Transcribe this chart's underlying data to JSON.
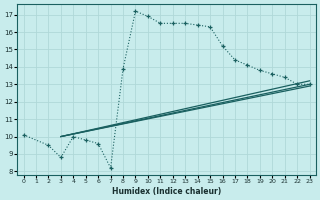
{
  "xlabel": "Humidex (Indice chaleur)",
  "background_color": "#c8ecec",
  "grid_color": "#b0d8d8",
  "line_color": "#1a6060",
  "xlim": [
    -0.5,
    23.5
  ],
  "ylim": [
    7.8,
    17.6
  ],
  "xticks": [
    0,
    1,
    2,
    3,
    4,
    5,
    6,
    7,
    8,
    9,
    10,
    11,
    12,
    13,
    14,
    15,
    16,
    17,
    18,
    19,
    20,
    21,
    22,
    23
  ],
  "yticks": [
    8,
    9,
    10,
    11,
    12,
    13,
    14,
    15,
    16,
    17
  ],
  "main_curve": {
    "x": [
      0,
      2,
      3,
      4,
      5,
      6,
      7,
      8,
      9,
      10,
      11,
      12,
      13,
      14,
      15,
      16,
      17,
      18,
      19,
      20,
      21,
      22,
      23
    ],
    "y": [
      10.1,
      9.5,
      8.8,
      10.0,
      9.8,
      9.6,
      8.2,
      13.9,
      17.2,
      16.9,
      16.5,
      16.5,
      16.5,
      16.4,
      16.3,
      15.2,
      14.4,
      14.1,
      13.8,
      13.6,
      13.4,
      13.0,
      13.0
    ]
  },
  "fan_lines": [
    {
      "x": [
        3,
        23
      ],
      "y": [
        10.0,
        13.0
      ]
    },
    {
      "x": [
        3,
        23
      ],
      "y": [
        10.0,
        12.9
      ]
    },
    {
      "x": [
        3,
        23
      ],
      "y": [
        10.0,
        13.2
      ]
    }
  ]
}
